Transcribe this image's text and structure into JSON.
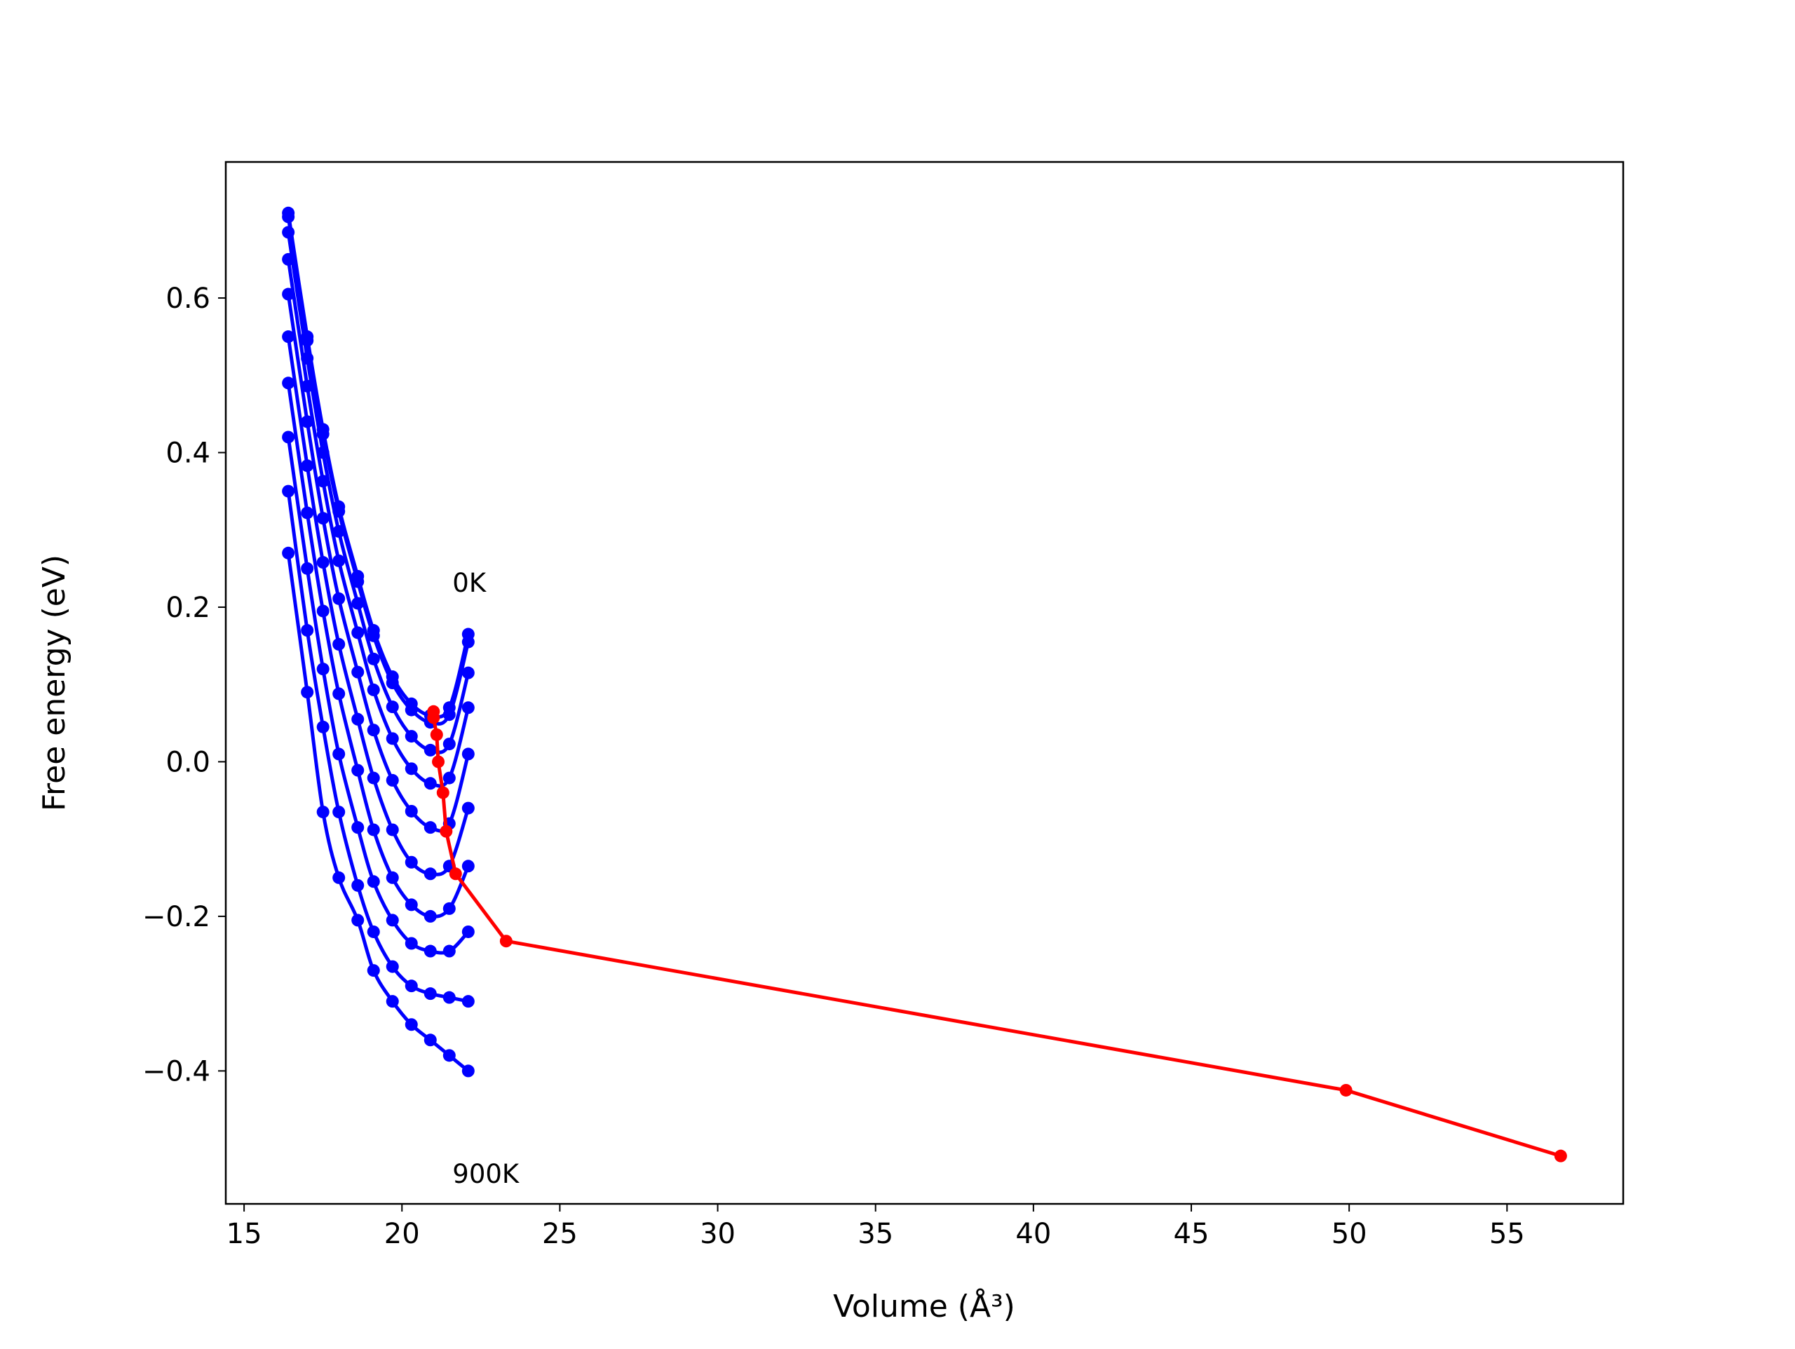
{
  "chart_data": {
    "type": "line",
    "x_label": "Volume (Å³)",
    "y_label": "Free energy (eV)",
    "x": [
      16.4,
      17.0,
      17.5,
      18.0,
      18.6,
      19.1,
      19.7,
      20.3,
      20.9,
      21.5,
      22.1
    ],
    "series": [
      {
        "color": "#0000ff",
        "values": [
          0.71,
          0.55,
          0.43,
          0.33,
          0.24,
          0.17,
          0.11,
          0.075,
          0.06,
          0.07,
          0.165
        ]
      },
      {
        "color": "#0000ff",
        "values": [
          0.705,
          0.545,
          0.424,
          0.324,
          0.233,
          0.163,
          0.102,
          0.067,
          0.051,
          0.061,
          0.155
        ]
      },
      {
        "color": "#0000ff",
        "values": [
          0.685,
          0.522,
          0.4,
          0.298,
          0.205,
          0.133,
          0.071,
          0.033,
          0.015,
          0.023,
          0.115
        ]
      },
      {
        "color": "#0000ff",
        "values": [
          0.65,
          0.486,
          0.363,
          0.26,
          0.167,
          0.093,
          0.03,
          -0.009,
          -0.028,
          -0.021,
          0.07
        ]
      },
      {
        "color": "#0000ff",
        "values": [
          0.605,
          0.44,
          0.315,
          0.211,
          0.116,
          0.041,
          -0.024,
          -0.064,
          -0.085,
          -0.08,
          0.01
        ]
      },
      {
        "color": "#0000ff",
        "values": [
          0.55,
          0.383,
          0.258,
          0.152,
          0.055,
          -0.021,
          -0.088,
          -0.13,
          -0.145,
          -0.135,
          -0.06
        ]
      },
      {
        "color": "#0000ff",
        "values": [
          0.49,
          0.322,
          0.195,
          0.088,
          -0.011,
          -0.088,
          -0.15,
          -0.185,
          -0.2,
          -0.19,
          -0.135
        ]
      },
      {
        "color": "#0000ff",
        "values": [
          0.42,
          0.25,
          0.12,
          0.01,
          -0.085,
          -0.155,
          -0.205,
          -0.235,
          -0.245,
          -0.245,
          -0.22
        ]
      },
      {
        "color": "#0000ff",
        "values": [
          0.35,
          0.17,
          0.045,
          -0.065,
          -0.16,
          -0.22,
          -0.265,
          -0.29,
          -0.3,
          -0.305,
          -0.31
        ]
      },
      {
        "color": "#0000ff",
        "values": [
          0.27,
          0.09,
          -0.065,
          -0.15,
          -0.205,
          -0.27,
          -0.31,
          -0.34,
          -0.36,
          -0.38,
          -0.4
        ]
      },
      {
        "color": "#ff0000",
        "x": [
          21.0,
          21.0,
          21.1,
          21.15,
          21.3,
          21.4,
          21.7,
          23.3,
          49.9,
          56.7
        ],
        "values": [
          0.065,
          0.057,
          0.035,
          0.0,
          -0.04,
          -0.09,
          -0.145,
          -0.232,
          -0.425,
          -0.51
        ]
      }
    ],
    "annotations": [
      {
        "text": "0K",
        "x": 21.6,
        "y": 0.22
      },
      {
        "text": "900K",
        "x": 21.6,
        "y": -0.545
      }
    ],
    "xlim": [
      14.42,
      58.68
    ],
    "ylim": [
      -0.572,
      0.776
    ],
    "xticks": [
      15,
      20,
      25,
      30,
      35,
      40,
      45,
      50,
      55
    ],
    "yticks": [
      {
        "value": -0.4,
        "label": "−0.4"
      },
      {
        "value": -0.2,
        "label": "−0.2"
      },
      {
        "value": 0,
        "label": "0.0"
      },
      0.2,
      0.4,
      0.6
    ]
  }
}
